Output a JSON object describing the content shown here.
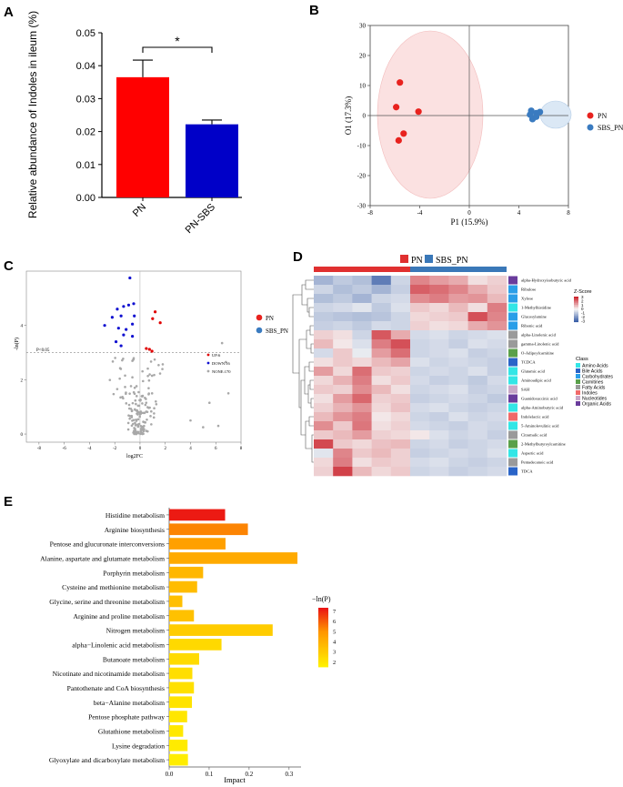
{
  "chart_data": [
    {
      "panel": "A",
      "type": "bar",
      "categories": [
        "PN",
        "PN-SBS"
      ],
      "values": [
        0.0365,
        0.0222
      ],
      "errors": [
        0.0052,
        0.0013
      ],
      "colors": [
        "#ff0000",
        "#0000c8"
      ],
      "ylabel": "Relative abundance of Indoles in ileum (%)",
      "ylim": [
        0,
        0.05
      ],
      "yticks": [
        "0.00",
        "0.01",
        "0.02",
        "0.03",
        "0.04",
        "0.05"
      ],
      "significance": "*"
    },
    {
      "panel": "B",
      "type": "scatter",
      "xlabel": "P1 (15.9%)",
      "ylabel": "O1 (17.3%)",
      "xlim": [
        -8,
        8
      ],
      "ylim": [
        -30,
        30
      ],
      "xticks": [
        "-8",
        "-4",
        "0",
        "4",
        "8"
      ],
      "yticks": [
        "-30",
        "-20",
        "-10",
        "0",
        "10",
        "20",
        "30"
      ],
      "series": [
        {
          "name": "PN",
          "color": "#e8221e",
          "points": [
            [
              -5.6,
              11
            ],
            [
              -5.9,
              2.8
            ],
            [
              -4.1,
              1.3
            ],
            [
              -5.3,
              -6
            ],
            [
              -5.7,
              -8.3
            ]
          ]
        },
        {
          "name": "SBS_PN",
          "color": "#3a7bc0",
          "points": [
            [
              5.0,
              1.6
            ],
            [
              5.4,
              0.8
            ],
            [
              5.7,
              1.2
            ],
            [
              5.1,
              -1.2
            ],
            [
              5.4,
              -0.4
            ],
            [
              4.9,
              0.3
            ]
          ]
        }
      ]
    },
    {
      "panel": "C",
      "type": "scatter",
      "xlabel": "log2FC",
      "ylabel": "-ln(P)",
      "xlim": [
        -9,
        8
      ],
      "ylim": [
        -0.3,
        6
      ],
      "xticks": [
        "-8",
        "-6",
        "-4",
        "-2",
        "0",
        "2",
        "4",
        "6",
        "8"
      ],
      "yticks": [
        "0",
        "2",
        "4"
      ],
      "threshold_label": "P<0.05",
      "threshold_y": 3.0,
      "legend": {
        "groups": [
          "PN",
          "SBS_PN"
        ],
        "up": "UP:6",
        "down": "DOWN:16",
        "none": "NONE:170"
      },
      "up_points": [
        [
          1.2,
          4.5
        ],
        [
          1.6,
          4.1
        ],
        [
          1.0,
          4.25
        ],
        [
          0.5,
          3.15
        ],
        [
          0.75,
          3.12
        ],
        [
          0.95,
          3.05
        ]
      ],
      "down_points": [
        [
          -0.8,
          5.75
        ],
        [
          -2.8,
          4.0
        ],
        [
          -1.8,
          4.6
        ],
        [
          -1.3,
          4.7
        ],
        [
          -0.9,
          4.75
        ],
        [
          -0.5,
          4.8
        ],
        [
          -1.5,
          4.35
        ],
        [
          -0.45,
          4.35
        ],
        [
          -2.2,
          4.3
        ],
        [
          -0.6,
          4.05
        ],
        [
          -1.7,
          3.9
        ],
        [
          -1.1,
          3.85
        ],
        [
          -1.3,
          3.65
        ],
        [
          -0.6,
          3.6
        ],
        [
          -1.9,
          3.4
        ],
        [
          -1.5,
          3.25
        ]
      ],
      "none_summary": {
        "count": 170,
        "outliers": [
          [
            6.5,
            3.35
          ],
          [
            6.8,
            2.65
          ],
          [
            7.0,
            1.5
          ],
          [
            5.5,
            1.15
          ],
          [
            4.0,
            0.5
          ],
          [
            6.2,
            0.3
          ],
          [
            5.0,
            0.25
          ]
        ]
      }
    },
    {
      "panel": "D",
      "type": "heatmap",
      "group_legend": [
        "PN",
        "SBS_PN"
      ],
      "group_colors": [
        "#e03030",
        "#3a78b8"
      ],
      "rows": [
        "alpha-Hydroxyisobutyric acid",
        "Ribulose",
        "Xylose",
        "1-Methylhistidine",
        "Glucosylamine",
        "Ribonic acid",
        "alpha-Linolenic acid",
        "gamma-Linolenic acid",
        "O-Adipoylcarnitine",
        "TCDCA",
        "Glutamic acid",
        "Aminoadipic acid",
        "SAH",
        "Guanidosuccinic acid",
        "alpha-Aminobutyric acid",
        "Indolelactic acid",
        "5-Aminolevulinic acid",
        "Citramalic acid",
        "2-Methylbutyroylcarnitine",
        "Aspartic acid",
        "Pentadecanoic acid",
        "TDCA"
      ],
      "row_class": [
        "Organic Acids",
        "Carbohydrates",
        "Carbohydrates",
        "Amino Acids",
        "Carbohydrates",
        "Carbohydrates",
        "Fatty Acids",
        "Fatty Acids",
        "Carnitines",
        "Bile Acids",
        "Amino Acids",
        "Amino Acids",
        "Nucleotides",
        "Organic Acids",
        "Amino Acids",
        "Indoles",
        "Amino Acids",
        "Fatty Acids",
        "Carnitines",
        "Amino Acids",
        "Fatty Acids",
        "Bile Acids"
      ],
      "values": [
        [
          -1.2,
          -0.8,
          -1.0,
          -2.2,
          -0.6,
          1.5,
          1.2,
          1.0,
          0.3,
          0.5
        ],
        [
          -0.6,
          -1.0,
          -0.8,
          -1.2,
          -0.7,
          2.0,
          1.8,
          1.5,
          1.0,
          0.6
        ],
        [
          -1.0,
          -0.8,
          -1.2,
          -0.6,
          -0.5,
          1.4,
          1.6,
          1.2,
          1.3,
          0.8
        ],
        [
          -0.6,
          -0.5,
          -0.3,
          -0.8,
          -0.4,
          0.6,
          0.4,
          0.8,
          0.3,
          1.6
        ],
        [
          -0.8,
          -0.9,
          -1.0,
          -0.9,
          -0.6,
          0.4,
          0.5,
          0.6,
          2.2,
          1.5
        ],
        [
          -0.7,
          -0.6,
          -0.8,
          -0.5,
          -0.6,
          0.5,
          0.3,
          0.4,
          1.0,
          1.3
        ],
        [
          0.5,
          0.3,
          -0.6,
          2.1,
          1.0,
          -0.5,
          -0.4,
          -0.6,
          -0.5,
          -0.4
        ],
        [
          0.8,
          0.2,
          -0.4,
          1.6,
          2.2,
          -0.6,
          -0.5,
          -0.7,
          -0.4,
          -0.5
        ],
        [
          -0.5,
          0.6,
          -0.2,
          1.2,
          1.8,
          -0.6,
          -0.5,
          -0.4,
          -0.7,
          -0.6
        ],
        [
          0.3,
          0.6,
          0.4,
          0.8,
          1.1,
          -0.4,
          -0.6,
          -0.5,
          -0.6,
          -0.7
        ],
        [
          1.2,
          0.4,
          1.8,
          0.6,
          0.5,
          -0.6,
          -0.5,
          -0.6,
          -0.4,
          -0.7
        ],
        [
          0.4,
          0.9,
          1.6,
          0.3,
          0.6,
          -0.5,
          -0.7,
          -0.6,
          -0.8,
          -0.5
        ],
        [
          0.6,
          0.5,
          1.4,
          0.8,
          0.3,
          -0.6,
          -0.5,
          -0.4,
          -0.7,
          -0.6
        ],
        [
          0.3,
          1.2,
          1.9,
          0.5,
          0.6,
          -0.7,
          -0.6,
          -0.5,
          -0.6,
          -0.8
        ],
        [
          0.5,
          0.9,
          1.3,
          0.4,
          0.7,
          -0.5,
          -0.4,
          -0.6,
          -0.7,
          -0.6
        ],
        [
          0.8,
          1.3,
          1.6,
          0.2,
          0.4,
          -0.6,
          -0.7,
          -0.4,
          -0.6,
          -0.5
        ],
        [
          1.4,
          0.6,
          1.7,
          0.3,
          0.5,
          -0.5,
          -0.6,
          -0.7,
          -0.5,
          -0.6
        ],
        [
          0.6,
          0.8,
          1.2,
          0.5,
          0.4,
          0.2,
          -0.4,
          -0.6,
          -0.5,
          -0.7
        ],
        [
          2.3,
          0.6,
          0.4,
          0.7,
          0.8,
          -0.6,
          -0.5,
          -0.7,
          -0.6,
          -0.5
        ],
        [
          -0.3,
          1.5,
          0.6,
          0.8,
          0.5,
          -0.7,
          -0.6,
          -0.5,
          -0.6,
          -0.4
        ],
        [
          0.4,
          1.6,
          0.3,
          0.6,
          0.5,
          -0.5,
          -0.4,
          -0.6,
          -0.7,
          -0.6
        ],
        [
          0.5,
          2.4,
          0.8,
          0.4,
          0.6,
          -0.6,
          -0.5,
          -0.7,
          -0.6,
          -0.5
        ]
      ],
      "zscore_title": "Z-Score",
      "zscore_ticks": [
        "3",
        "2",
        "1",
        "0",
        "-1",
        "-2",
        "-3"
      ],
      "class_title": "Class",
      "class_legend": [
        {
          "name": "Amino Acids",
          "color": "#33e6e6"
        },
        {
          "name": "Bile Acids",
          "color": "#2a64c8"
        },
        {
          "name": "Carbohydrates",
          "color": "#2a9ee8"
        },
        {
          "name": "Carnitines",
          "color": "#5aa04a"
        },
        {
          "name": "Fatty Acids",
          "color": "#9a9a9a"
        },
        {
          "name": "Indoles",
          "color": "#f06a6a"
        },
        {
          "name": "Nucleotides",
          "color": "#c8a8c8"
        },
        {
          "name": "Organic Acids",
          "color": "#6a3c9c"
        }
      ]
    },
    {
      "panel": "E",
      "type": "bar",
      "orientation": "horizontal",
      "categories": [
        "Histidine metabolism",
        "Arginine biosynthesis",
        "Pentose and glucuronate interconversions",
        "Alanine, aspartate and glutamate metabolism",
        "Porphyrin metabolism",
        "Cysteine and methionine metabolism",
        "Glycine, serine and threonine metabolism",
        "Arginine and proline metabolism",
        "Nitrogen metabolism",
        "alpha−Linolenic acid metabolism",
        "Butanoate metabolism",
        "Nicotinate and nicotinamide metabolism",
        "Pantothenate and CoA biosynthesis",
        "beta−Alanine metabolism",
        "Pentose phosphate pathway",
        "Glutathione metabolism",
        "Lysine degradation",
        "Glyoxylate and dicarboxylate metabolism"
      ],
      "values": [
        0.14,
        0.197,
        0.141,
        0.321,
        0.085,
        0.07,
        0.033,
        0.062,
        0.259,
        0.131,
        0.075,
        0.058,
        0.062,
        0.057,
        0.045,
        0.035,
        0.046,
        0.047
      ],
      "color_values": [
        7.2,
        5.3,
        4.6,
        4.2,
        3.7,
        3.5,
        3.4,
        3.3,
        2.9,
        2.4,
        2.3,
        2.2,
        2.1,
        2.0,
        1.9,
        1.8,
        1.7,
        1.6
      ],
      "xlabel": "Impact",
      "xlim": [
        0,
        0.33
      ],
      "xticks": [
        "0.0",
        "0.1",
        "0.2",
        "0.3"
      ],
      "colorbar_title": "−ln(P)",
      "colorbar_ticks": [
        "7",
        "6",
        "5",
        "4",
        "3",
        "2"
      ]
    }
  ],
  "panel_labels": [
    "A",
    "B",
    "C",
    "D",
    "E"
  ]
}
